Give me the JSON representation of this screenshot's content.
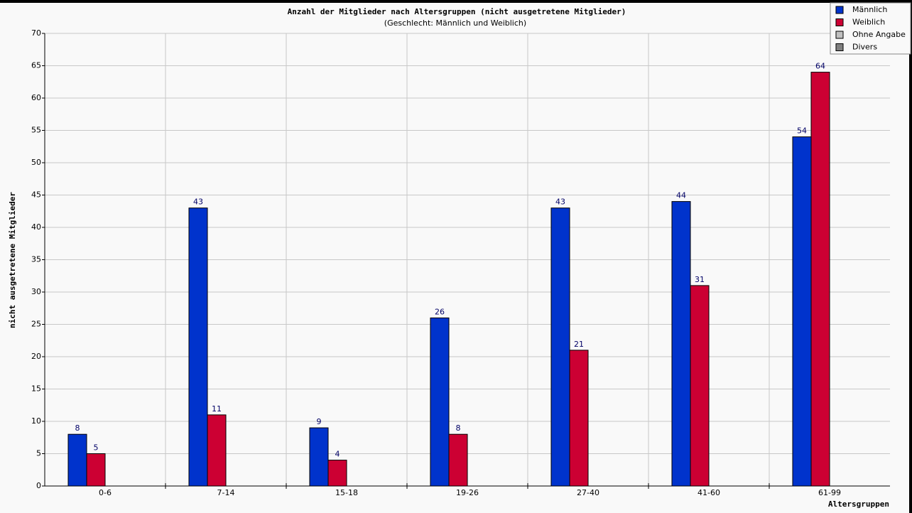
{
  "chart_data": {
    "type": "bar",
    "title": "Anzahl der Mitglieder nach Altersgruppen (nicht ausgetretene Mitglieder)",
    "subtitle": "(Geschlecht: Männlich und Weiblich)",
    "x_label": "Altersgruppen",
    "y_label": "nicht ausgetretene Mitglieder",
    "categories": [
      "0-6",
      "7-14",
      "15-18",
      "19-26",
      "27-40",
      "41-60",
      "61-99"
    ],
    "series": [
      {
        "name": "Männlich",
        "color": "#0033cc",
        "values": [
          8,
          43,
          9,
          26,
          43,
          44,
          54
        ]
      },
      {
        "name": "Weiblich",
        "color": "#cc0033",
        "values": [
          5,
          11,
          4,
          8,
          21,
          31,
          64
        ]
      },
      {
        "name": "Ohne Angabe",
        "color": "#c0c0c0",
        "values": [
          0,
          0,
          0,
          0,
          0,
          0,
          0
        ]
      },
      {
        "name": "Divers",
        "color": "#808080",
        "values": [
          0,
          0,
          0,
          0,
          0,
          0,
          0
        ]
      }
    ],
    "ylim": [
      0,
      70
    ],
    "yticks": [
      0,
      5,
      10,
      15,
      20,
      25,
      30,
      35,
      40,
      45,
      50,
      55,
      60,
      65,
      70
    ],
    "grid": true,
    "legend": "top-right"
  }
}
